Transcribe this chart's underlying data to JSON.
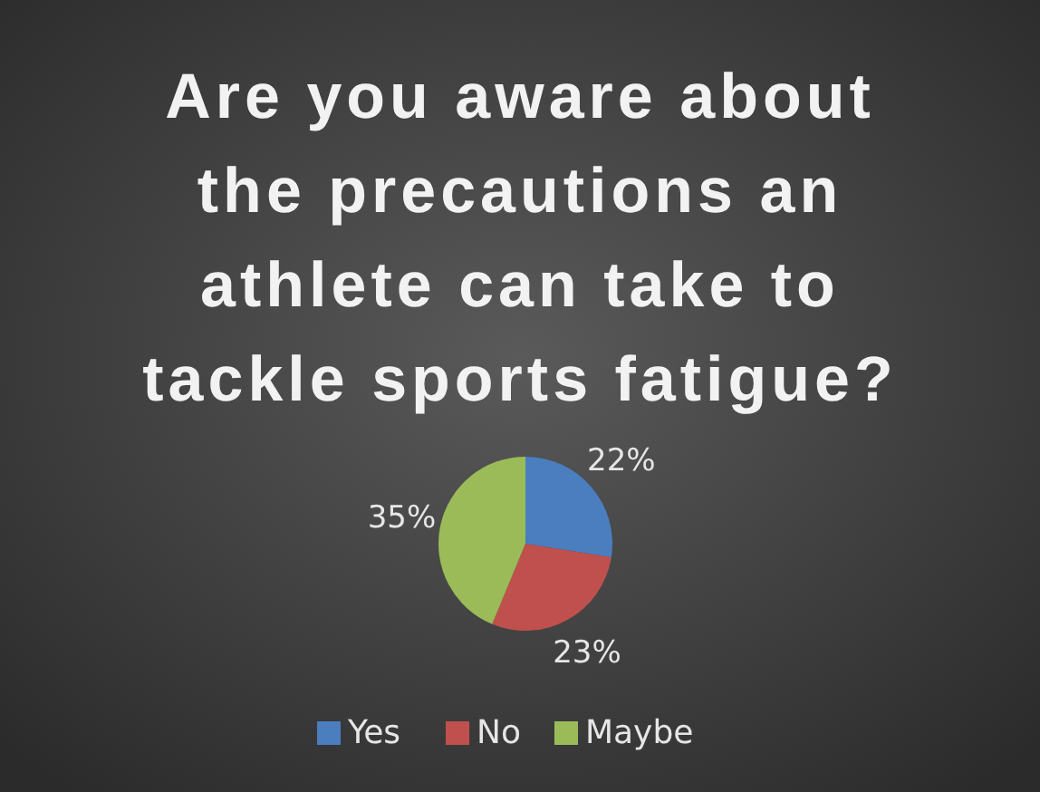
{
  "chart_data": {
    "type": "pie",
    "title": "Are you aware about the precautions an athlete can take to tackle sports fatigue?",
    "categories": [
      "Yes",
      "No",
      "Maybe"
    ],
    "values": [
      22,
      23,
      35
    ],
    "colors": [
      "#4a7ebf",
      "#c0504d",
      "#9bbb59"
    ],
    "value_labels": [
      "22%",
      "23%",
      "35%"
    ],
    "legend": "bottom"
  }
}
